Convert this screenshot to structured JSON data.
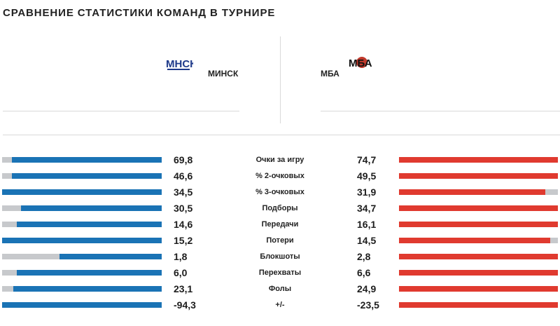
{
  "page": {
    "title": "СРАВНЕНИЕ СТАТИСТИКИ КОМАНД В ТУРНИРЕ"
  },
  "teams": {
    "left": {
      "name": "МИНСК",
      "logo_text": "МНСК",
      "color": "#1a73b5",
      "logo_icon": "minsk-logo"
    },
    "right": {
      "name": "МБА",
      "logo_text": "МБА",
      "color": "#e03a2f",
      "logo_icon": "mba-logo"
    }
  },
  "stats": [
    {
      "label": "Очки за игру",
      "left": "69,8",
      "right": "74,7",
      "left_fill": 0.94,
      "right_fill": 1.0
    },
    {
      "label": "% 2-очковых",
      "left": "46,6",
      "right": "49,5",
      "left_fill": 0.94,
      "right_fill": 1.0
    },
    {
      "label": "% 3-очковых",
      "left": "34,5",
      "right": "31,9",
      "left_fill": 1.0,
      "right_fill": 0.92
    },
    {
      "label": "Подборы",
      "left": "30,5",
      "right": "34,7",
      "left_fill": 0.88,
      "right_fill": 1.0
    },
    {
      "label": "Передачи",
      "left": "14,6",
      "right": "16,1",
      "left_fill": 0.91,
      "right_fill": 1.0
    },
    {
      "label": "Потери",
      "left": "15,2",
      "right": "14,5",
      "left_fill": 1.0,
      "right_fill": 0.95
    },
    {
      "label": "Блокшоты",
      "left": "1,8",
      "right": "2,8",
      "left_fill": 0.64,
      "right_fill": 1.0
    },
    {
      "label": "Перехваты",
      "left": "6,0",
      "right": "6,6",
      "left_fill": 0.91,
      "right_fill": 1.0
    },
    {
      "label": "Фолы",
      "left": "23,1",
      "right": "24,9",
      "left_fill": 0.93,
      "right_fill": 1.0
    },
    {
      "label": "+/-",
      "left": "-94,3",
      "right": "-23,5",
      "left_fill": 1.0,
      "right_fill": 1.0
    }
  ]
}
